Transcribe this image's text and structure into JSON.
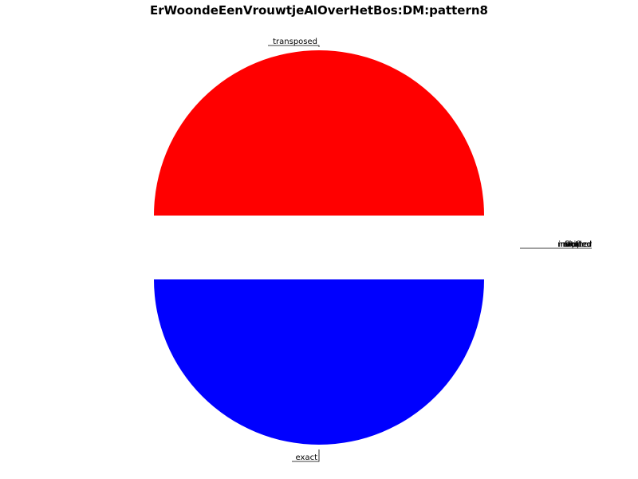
{
  "chart_data": {
    "type": "pie",
    "title": "ErWoondeEenVrouwtjeAlOverHetBos:DM:pattern8",
    "slices": [
      {
        "label": "transposed",
        "value": 50,
        "color": "#ff0000",
        "exploded": true
      },
      {
        "label": "exact",
        "value": 50,
        "color": "#0000ff",
        "exploded": true
      },
      {
        "label": "rotated",
        "value": 0,
        "color": "#00aa00",
        "exploded": false
      },
      {
        "label": "mirrored",
        "value": 0,
        "color": "#ffaa00",
        "exploded": false
      },
      {
        "label": "flipped",
        "value": 0,
        "color": "#aa00aa",
        "exploded": false
      },
      {
        "label": "shifted",
        "value": 0,
        "color": "#00aaaa",
        "exploded": false
      },
      {
        "label": "inverted",
        "value": 0,
        "color": "#888888",
        "exploded": false
      },
      {
        "label": "scaled",
        "value": 0,
        "color": "#aaaa00",
        "exploded": false
      },
      {
        "label": "other",
        "value": 0,
        "color": "#555555",
        "exploded": false
      }
    ]
  }
}
